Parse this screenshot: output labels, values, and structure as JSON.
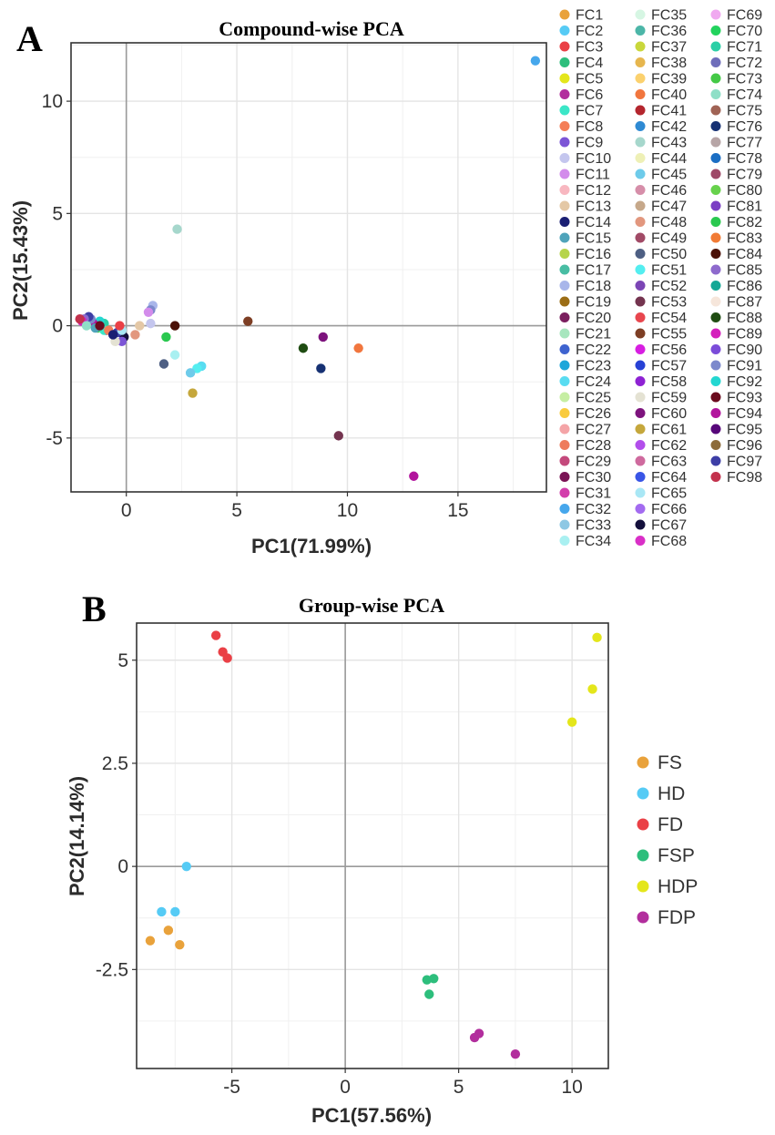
{
  "chart_data": [
    {
      "type": "scatter",
      "panel_label": "A",
      "title": "Compound-wise PCA",
      "xlabel": "PC1(71.99%)",
      "ylabel": "PC2(15.43%)",
      "xlim": [
        -2.5,
        19.0
      ],
      "ylim": [
        -7.4,
        12.6
      ],
      "x_ticks": [
        0,
        5,
        10,
        15
      ],
      "y_ticks": [
        -5,
        0,
        5,
        10
      ],
      "x_tick_labels": [
        "0",
        "5",
        "10",
        "15"
      ],
      "y_tick_labels": [
        "-5",
        "0",
        "5",
        "10"
      ],
      "grid": true,
      "legend_position": "right",
      "series": [
        {
          "name": "FC1",
          "color": "#E9A23B"
        },
        {
          "name": "FC2",
          "color": "#56CBF5"
        },
        {
          "name": "FC3",
          "color": "#EA4046"
        },
        {
          "name": "FC4",
          "color": "#2DBE7C"
        },
        {
          "name": "FC5",
          "color": "#E4E61B"
        },
        {
          "name": "FC6",
          "color": "#B22E9D"
        },
        {
          "name": "FC7",
          "color": "#3BE6C7"
        },
        {
          "name": "FC8",
          "color": "#F47E58"
        },
        {
          "name": "FC9",
          "color": "#7C55D6"
        },
        {
          "name": "FC10",
          "color": "#C4C6EE"
        },
        {
          "name": "FC11",
          "color": "#D38CEB"
        },
        {
          "name": "FC12",
          "color": "#F8B7C0"
        },
        {
          "name": "FC13",
          "color": "#E4C8A6"
        },
        {
          "name": "FC14",
          "color": "#1A1F73"
        },
        {
          "name": "FC15",
          "color": "#4FA3BA"
        },
        {
          "name": "FC16",
          "color": "#B6D44C"
        },
        {
          "name": "FC17",
          "color": "#48BDA3"
        },
        {
          "name": "FC18",
          "color": "#A9B6EA"
        },
        {
          "name": "FC19",
          "color": "#9B6D16"
        },
        {
          "name": "FC20",
          "color": "#7A1F5E"
        },
        {
          "name": "FC21",
          "color": "#A7E6BE"
        },
        {
          "name": "FC22",
          "color": "#3E63CF"
        },
        {
          "name": "FC23",
          "color": "#1EA6DA"
        },
        {
          "name": "FC24",
          "color": "#59DCF1"
        },
        {
          "name": "FC25",
          "color": "#C6EEA3"
        },
        {
          "name": "FC26",
          "color": "#F9CB3E"
        },
        {
          "name": "FC27",
          "color": "#F4A4A7"
        },
        {
          "name": "FC28",
          "color": "#EE7C5C"
        },
        {
          "name": "FC29",
          "color": "#C4497C"
        },
        {
          "name": "FC30",
          "color": "#7A1455"
        },
        {
          "name": "FC31",
          "color": "#D23EAB"
        },
        {
          "name": "FC32",
          "color": "#46A7EC"
        },
        {
          "name": "FC33",
          "color": "#8EC8E4"
        },
        {
          "name": "FC34",
          "color": "#A9F0F1"
        },
        {
          "name": "FC35",
          "color": "#D6F6E3"
        },
        {
          "name": "FC36",
          "color": "#4CB6A8"
        },
        {
          "name": "FC37",
          "color": "#C9D73B"
        },
        {
          "name": "FC38",
          "color": "#E6B64E"
        },
        {
          "name": "FC39",
          "color": "#FBD16E"
        },
        {
          "name": "FC40",
          "color": "#F1763E"
        },
        {
          "name": "FC41",
          "color": "#B4262E"
        },
        {
          "name": "FC42",
          "color": "#2E8AD3"
        },
        {
          "name": "FC43",
          "color": "#A6D7CC"
        },
        {
          "name": "FC44",
          "color": "#EEF0B6"
        },
        {
          "name": "FC45",
          "color": "#6ECBEA"
        },
        {
          "name": "FC46",
          "color": "#D68EA9"
        },
        {
          "name": "FC47",
          "color": "#C6A88A"
        },
        {
          "name": "FC48",
          "color": "#E2977E"
        },
        {
          "name": "FC49",
          "color": "#A14A66"
        },
        {
          "name": "FC50",
          "color": "#4E5F83"
        },
        {
          "name": "FC51",
          "color": "#54EEF0"
        },
        {
          "name": "FC52",
          "color": "#7B45B5"
        },
        {
          "name": "FC53",
          "color": "#74344F"
        },
        {
          "name": "FC54",
          "color": "#E8464E"
        },
        {
          "name": "FC55",
          "color": "#7D3E24"
        },
        {
          "name": "FC56",
          "color": "#D71EE1"
        },
        {
          "name": "FC57",
          "color": "#2741D5"
        },
        {
          "name": "FC58",
          "color": "#8E22D3"
        },
        {
          "name": "FC59",
          "color": "#E4E2D3"
        },
        {
          "name": "FC60",
          "color": "#7D137D"
        },
        {
          "name": "FC61",
          "color": "#C5A73C"
        },
        {
          "name": "FC62",
          "color": "#B24EEB"
        },
        {
          "name": "FC63",
          "color": "#CF6A9E"
        },
        {
          "name": "FC64",
          "color": "#3955E6"
        },
        {
          "name": "FC65",
          "color": "#A9E7F5"
        },
        {
          "name": "FC66",
          "color": "#A36BF0"
        },
        {
          "name": "FC67",
          "color": "#14103C"
        },
        {
          "name": "FC68",
          "color": "#D92FC7"
        },
        {
          "name": "FC69",
          "color": "#F0A9F0"
        },
        {
          "name": "FC70",
          "color": "#22D35D"
        },
        {
          "name": "FC71",
          "color": "#2CCFA6"
        },
        {
          "name": "FC72",
          "color": "#6E6DBA"
        },
        {
          "name": "FC73",
          "color": "#44C946"
        },
        {
          "name": "FC74",
          "color": "#8FDFC7"
        },
        {
          "name": "FC75",
          "color": "#A06355"
        },
        {
          "name": "FC76",
          "color": "#163173"
        },
        {
          "name": "FC77",
          "color": "#B7A5A6"
        },
        {
          "name": "FC78",
          "color": "#1B6EC3"
        },
        {
          "name": "FC79",
          "color": "#9E4968"
        },
        {
          "name": "FC80",
          "color": "#67D24C"
        },
        {
          "name": "FC81",
          "color": "#7B3FC4"
        },
        {
          "name": "FC82",
          "color": "#2AC84F"
        },
        {
          "name": "FC83",
          "color": "#F17B35"
        },
        {
          "name": "FC84",
          "color": "#4B1107"
        },
        {
          "name": "FC85",
          "color": "#8E6ACD"
        },
        {
          "name": "FC86",
          "color": "#14A795"
        },
        {
          "name": "FC87",
          "color": "#F6E6DB"
        },
        {
          "name": "FC88",
          "color": "#1F4C12"
        },
        {
          "name": "FC89",
          "color": "#D420BC"
        },
        {
          "name": "FC90",
          "color": "#7B4CD9"
        },
        {
          "name": "FC91",
          "color": "#7C89CC"
        },
        {
          "name": "FC92",
          "color": "#23D7D1"
        },
        {
          "name": "FC93",
          "color": "#6A0B1E"
        },
        {
          "name": "FC94",
          "color": "#B2149D"
        },
        {
          "name": "FC95",
          "color": "#57077A"
        },
        {
          "name": "FC96",
          "color": "#8C6B3A"
        },
        {
          "name": "FC97",
          "color": "#3D3EA6"
        },
        {
          "name": "FC98",
          "color": "#C3324D"
        }
      ],
      "points": [
        {
          "x": 18.5,
          "y": 11.8,
          "color": "#46A7EC"
        },
        {
          "x": 2.3,
          "y": 4.3,
          "color": "#A6D7CC"
        },
        {
          "x": 5.5,
          "y": 0.2,
          "color": "#7D3E24"
        },
        {
          "x": 2.2,
          "y": 0.0,
          "color": "#4B1107"
        },
        {
          "x": 1.2,
          "y": 0.9,
          "color": "#A9B6EA"
        },
        {
          "x": 1.1,
          "y": 0.7,
          "color": "#7C89CC"
        },
        {
          "x": 1.0,
          "y": 0.6,
          "color": "#D38CEB"
        },
        {
          "x": 1.1,
          "y": 0.1,
          "color": "#C4C6EE"
        },
        {
          "x": 0.6,
          "y": 0.0,
          "color": "#E4C8A6"
        },
        {
          "x": 0.4,
          "y": -0.4,
          "color": "#E2977E"
        },
        {
          "x": -0.1,
          "y": -0.5,
          "color": "#14103C"
        },
        {
          "x": -0.2,
          "y": -0.7,
          "color": "#7C55D6"
        },
        {
          "x": -0.4,
          "y": -0.3,
          "color": "#3D3EA6"
        },
        {
          "x": -0.2,
          "y": -0.2,
          "color": "#A9E7F5"
        },
        {
          "x": -0.5,
          "y": -0.7,
          "color": "#E4E2D3"
        },
        {
          "x": -0.3,
          "y": 0.0,
          "color": "#EA4046"
        },
        {
          "x": -0.9,
          "y": -0.2,
          "color": "#57077A"
        },
        {
          "x": -1.0,
          "y": 0.1,
          "color": "#2CCFA6"
        },
        {
          "x": -1.2,
          "y": 0.2,
          "color": "#23D7D1"
        },
        {
          "x": -1.3,
          "y": -0.1,
          "color": "#44C946"
        },
        {
          "x": -1.5,
          "y": 0.1,
          "color": "#B2149D"
        },
        {
          "x": -1.6,
          "y": 0.3,
          "color": "#7C89CC"
        },
        {
          "x": -1.7,
          "y": 0.4,
          "color": "#3D3EA6"
        },
        {
          "x": -1.9,
          "y": 0.3,
          "color": "#8E6ACD"
        },
        {
          "x": -2.0,
          "y": 0.2,
          "color": "#D420BC"
        },
        {
          "x": -2.1,
          "y": 0.3,
          "color": "#C3324D"
        },
        {
          "x": -1.8,
          "y": 0.0,
          "color": "#8FDFC7"
        },
        {
          "x": -1.4,
          "y": -0.1,
          "color": "#4FA3BA"
        },
        {
          "x": -1.0,
          "y": -0.2,
          "color": "#3BE6C7"
        },
        {
          "x": -1.2,
          "y": 0.0,
          "color": "#6A0B1E"
        },
        {
          "x": -0.8,
          "y": -0.2,
          "color": "#F47E58"
        },
        {
          "x": -0.6,
          "y": -0.4,
          "color": "#1A1F73"
        },
        {
          "x": 1.8,
          "y": -0.5,
          "color": "#2AC84F"
        },
        {
          "x": 2.2,
          "y": -1.3,
          "color": "#A9F0F1"
        },
        {
          "x": 3.4,
          "y": -1.8,
          "color": "#59DCF1"
        },
        {
          "x": 3.2,
          "y": -1.9,
          "color": "#54EEF0"
        },
        {
          "x": 2.9,
          "y": -2.1,
          "color": "#6ECBEA"
        },
        {
          "x": 1.7,
          "y": -1.7,
          "color": "#4E5F83"
        },
        {
          "x": 3.0,
          "y": -3.0,
          "color": "#C5A73C"
        },
        {
          "x": 8.9,
          "y": -0.5,
          "color": "#7D137D"
        },
        {
          "x": 10.5,
          "y": -1.0,
          "color": "#F1763E"
        },
        {
          "x": 8.0,
          "y": -1.0,
          "color": "#1F4C12"
        },
        {
          "x": 8.8,
          "y": -1.9,
          "color": "#163173"
        },
        {
          "x": 9.6,
          "y": -4.9,
          "color": "#74344F"
        },
        {
          "x": 13.0,
          "y": -6.7,
          "color": "#B2149D"
        }
      ]
    },
    {
      "type": "scatter",
      "panel_label": "B",
      "title": "Group-wise PCA",
      "xlabel": "PC1(57.56%)",
      "ylabel": "PC2(14.14%)",
      "xlim": [
        -9.2,
        11.6
      ],
      "ylim": [
        -4.9,
        5.9
      ],
      "x_ticks": [
        -5,
        0,
        5,
        10
      ],
      "y_ticks": [
        -2.5,
        0,
        2.5,
        5
      ],
      "x_tick_labels": [
        "-5",
        "0",
        "5",
        "10"
      ],
      "y_tick_labels": [
        "-2.5",
        "0",
        "2.5",
        "5"
      ],
      "grid": true,
      "legend_position": "right",
      "series": [
        {
          "name": "FS",
          "color": "#E9A23B",
          "points": [
            {
              "x": -8.6,
              "y": -1.8
            },
            {
              "x": -7.8,
              "y": -1.55
            },
            {
              "x": -7.3,
              "y": -1.9
            }
          ]
        },
        {
          "name": "HD",
          "color": "#56CBF5",
          "points": [
            {
              "x": -8.1,
              "y": -1.1
            },
            {
              "x": -7.5,
              "y": -1.1
            },
            {
              "x": -7.0,
              "y": 0.0
            }
          ]
        },
        {
          "name": "FD",
          "color": "#EA4046",
          "points": [
            {
              "x": -5.7,
              "y": 5.6
            },
            {
              "x": -5.4,
              "y": 5.2
            },
            {
              "x": -5.2,
              "y": 5.05
            }
          ]
        },
        {
          "name": "FSP",
          "color": "#2DBE7C",
          "points": [
            {
              "x": 3.6,
              "y": -2.75
            },
            {
              "x": 3.9,
              "y": -2.72
            },
            {
              "x": 3.7,
              "y": -3.1
            }
          ]
        },
        {
          "name": "HDP",
          "color": "#E4E61B",
          "points": [
            {
              "x": 11.1,
              "y": 5.55
            },
            {
              "x": 10.9,
              "y": 4.3
            },
            {
              "x": 10.0,
              "y": 3.5
            }
          ]
        },
        {
          "name": "FDP",
          "color": "#B22E9D",
          "points": [
            {
              "x": 5.9,
              "y": -4.05
            },
            {
              "x": 5.7,
              "y": -4.15
            },
            {
              "x": 7.5,
              "y": -4.55
            }
          ]
        }
      ]
    }
  ]
}
